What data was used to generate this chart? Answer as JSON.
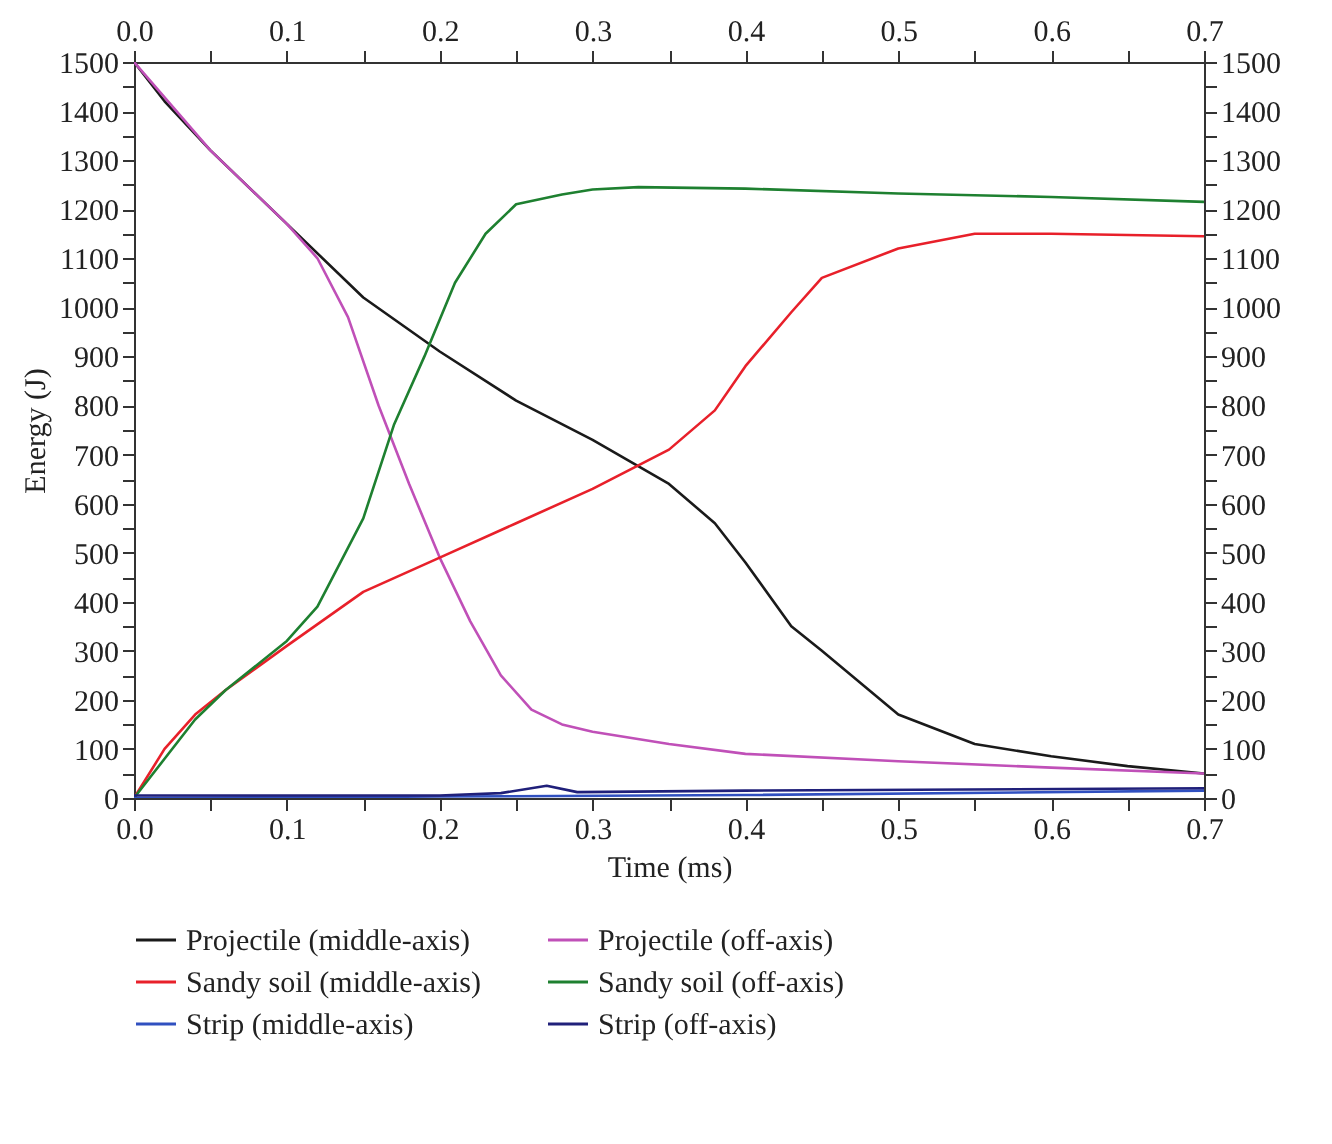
{
  "chart_data": {
    "type": "line",
    "xlabel": "Time (ms)",
    "ylabel": "Energy (J)",
    "grid": false,
    "legend": "bottom",
    "line_style": "solid",
    "marker": "none",
    "xlim": [
      0,
      0.7
    ],
    "xticks": [
      {
        "value": 0,
        "label": "0.0"
      },
      {
        "value": 0.05,
        "label": null
      },
      0.1,
      {
        "value": 0.15,
        "label": null
      },
      0.2,
      {
        "value": 0.25,
        "label": null
      },
      0.3,
      {
        "value": 0.35,
        "label": null
      },
      0.4,
      {
        "value": 0.45,
        "label": null
      },
      0.5,
      {
        "value": 0.55,
        "label": null
      },
      0.6,
      {
        "value": 0.65,
        "label": null
      },
      0.7
    ],
    "x2lim": [
      0,
      0.7
    ],
    "x2ticks": [
      {
        "value": 0,
        "label": "0.0"
      },
      {
        "value": 0.05,
        "label": null
      },
      0.1,
      {
        "value": 0.15,
        "label": null
      },
      0.2,
      {
        "value": 0.25,
        "label": null
      },
      0.3,
      {
        "value": 0.35,
        "label": null
      },
      0.4,
      {
        "value": 0.45,
        "label": null
      },
      0.5,
      {
        "value": 0.55,
        "label": null
      },
      0.6,
      {
        "value": 0.65,
        "label": null
      },
      0.7
    ],
    "ylim": [
      0,
      1500
    ],
    "yticks": [
      0,
      {
        "value": 50,
        "label": null
      },
      100,
      {
        "value": 150,
        "label": null
      },
      200,
      {
        "value": 250,
        "label": null
      },
      300,
      {
        "value": 350,
        "label": null
      },
      400,
      {
        "value": 450,
        "label": null
      },
      500,
      {
        "value": 550,
        "label": null
      },
      600,
      {
        "value": 650,
        "label": null
      },
      700,
      {
        "value": 750,
        "label": null
      },
      800,
      {
        "value": 850,
        "label": null
      },
      900,
      {
        "value": 950,
        "label": null
      },
      1000,
      {
        "value": 1050,
        "label": null
      },
      1100,
      {
        "value": 1150,
        "label": null
      },
      1200,
      {
        "value": 1250,
        "label": null
      },
      1300,
      {
        "value": 1350,
        "label": null
      },
      1400,
      {
        "value": 1450,
        "label": null
      },
      1500
    ],
    "y2lim": [
      0,
      1500
    ],
    "y2ticks": [
      0,
      {
        "value": 50,
        "label": null
      },
      100,
      {
        "value": 150,
        "label": null
      },
      200,
      {
        "value": 250,
        "label": null
      },
      300,
      {
        "value": 350,
        "label": null
      },
      400,
      {
        "value": 450,
        "label": null
      },
      500,
      {
        "value": 550,
        "label": null
      },
      600,
      {
        "value": 650,
        "label": null
      },
      700,
      {
        "value": 750,
        "label": null
      },
      800,
      {
        "value": 850,
        "label": null
      },
      900,
      {
        "value": 950,
        "label": null
      },
      1000,
      {
        "value": 1050,
        "label": null
      },
      1100,
      {
        "value": 1150,
        "label": null
      },
      1200,
      {
        "value": 1250,
        "label": null
      },
      1300,
      {
        "value": 1350,
        "label": null
      },
      1400,
      {
        "value": 1450,
        "label": null
      },
      1500
    ],
    "series": [
      {
        "name": "Projectile (middle-axis)",
        "color": "#1a1a1a",
        "x": [
          0,
          0.02,
          0.05,
          0.1,
          0.15,
          0.2,
          0.25,
          0.3,
          0.35,
          0.38,
          0.4,
          0.43,
          0.45,
          0.5,
          0.55,
          0.6,
          0.65,
          0.7
        ],
        "values": [
          1500,
          1420,
          1320,
          1170,
          1020,
          910,
          810,
          730,
          640,
          560,
          480,
          350,
          300,
          170,
          110,
          85,
          65,
          50
        ]
      },
      {
        "name": "Projectile (off-axis)",
        "color": "#c050b8",
        "x": [
          0,
          0.05,
          0.1,
          0.12,
          0.14,
          0.16,
          0.18,
          0.2,
          0.22,
          0.24,
          0.26,
          0.28,
          0.3,
          0.35,
          0.4,
          0.5,
          0.6,
          0.7
        ],
        "values": [
          1500,
          1320,
          1170,
          1100,
          980,
          800,
          640,
          490,
          360,
          250,
          180,
          150,
          135,
          110,
          90,
          75,
          62,
          50
        ]
      },
      {
        "name": "Sandy soil (middle-axis)",
        "color": "#e8202a",
        "x": [
          0,
          0.02,
          0.04,
          0.06,
          0.1,
          0.15,
          0.2,
          0.25,
          0.3,
          0.35,
          0.38,
          0.4,
          0.43,
          0.45,
          0.5,
          0.55,
          0.6,
          0.7
        ],
        "values": [
          0,
          100,
          170,
          220,
          310,
          420,
          490,
          560,
          630,
          710,
          790,
          880,
          990,
          1060,
          1120,
          1150,
          1150,
          1145
        ]
      },
      {
        "name": "Sandy soil (off-axis)",
        "color": "#1e8030",
        "x": [
          0,
          0.02,
          0.04,
          0.06,
          0.1,
          0.12,
          0.15,
          0.17,
          0.19,
          0.21,
          0.23,
          0.25,
          0.28,
          0.3,
          0.33,
          0.4,
          0.5,
          0.6,
          0.7
        ],
        "values": [
          0,
          80,
          160,
          220,
          320,
          390,
          570,
          760,
          900,
          1050,
          1150,
          1210,
          1230,
          1240,
          1245,
          1242,
          1232,
          1225,
          1215
        ]
      },
      {
        "name": "Strip (middle-axis)",
        "color": "#3050c0",
        "x": [
          0,
          0.2,
          0.4,
          0.7
        ],
        "values": [
          0,
          3,
          6,
          15
        ]
      },
      {
        "name": "Strip (off-axis)",
        "color": "#20207a",
        "x": [
          0,
          0.2,
          0.24,
          0.27,
          0.29,
          0.4,
          0.7
        ],
        "values": [
          5,
          5,
          10,
          25,
          12,
          15,
          20
        ]
      }
    ]
  }
}
